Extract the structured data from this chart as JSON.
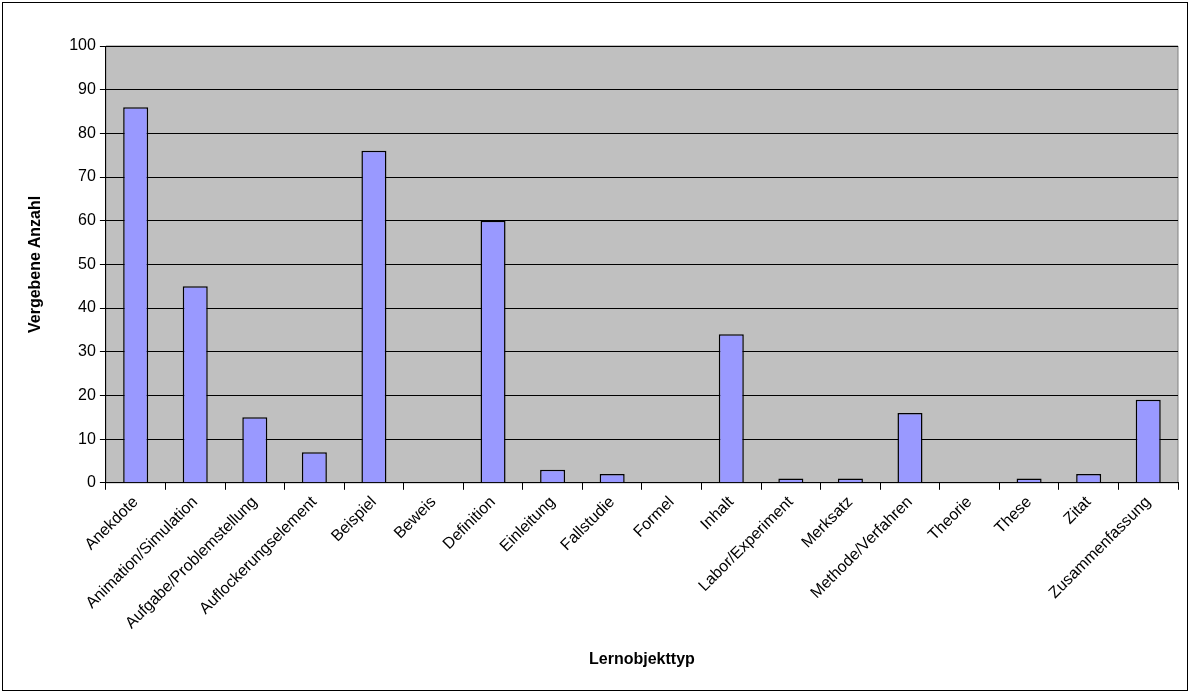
{
  "chart_data": {
    "type": "bar",
    "xlabel": "Lernobjekttyp",
    "ylabel": "Vergebene Anzahl",
    "categories": [
      "Anekdote",
      "Animation/Simulation",
      "Aufgabe/Problemstellung",
      "Auflockerungselement",
      "Beispiel",
      "Beweis",
      "Definition",
      "Einleitung",
      "Fallstudie",
      "Formel",
      "Inhalt",
      "Labor/Experiment",
      "Merksatz",
      "Methode/Verfahren",
      "Theorie",
      "These",
      "Zitat",
      "Zusammenfassung"
    ],
    "values": [
      86,
      45,
      15,
      7,
      76,
      0,
      60,
      3,
      2,
      0,
      34,
      1,
      1,
      16,
      0,
      1,
      2,
      19
    ],
    "color": "#9999ff",
    "ylim": [
      0,
      100
    ],
    "yticks": [
      0,
      10,
      20,
      30,
      40,
      50,
      60,
      70,
      80,
      90,
      100
    ],
    "grid": "y",
    "legend": false
  }
}
